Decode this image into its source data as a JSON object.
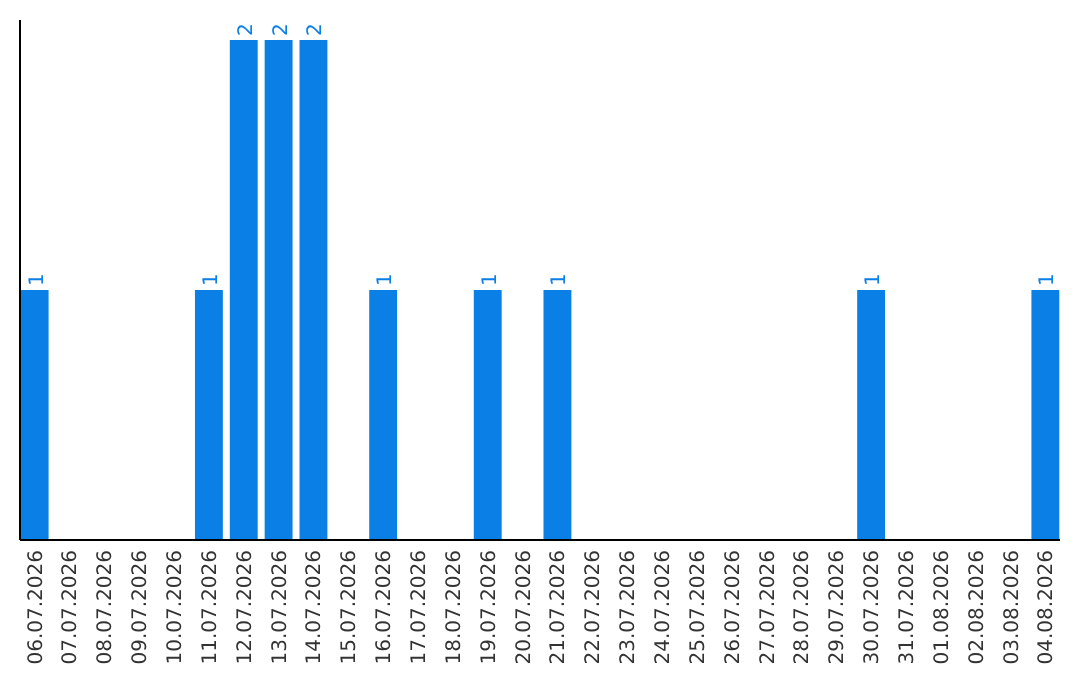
{
  "chart_data": {
    "type": "bar",
    "categories": [
      "06.07.2026",
      "07.07.2026",
      "08.07.2026",
      "09.07.2026",
      "10.07.2026",
      "11.07.2026",
      "12.07.2026",
      "13.07.2026",
      "14.07.2026",
      "15.07.2026",
      "16.07.2026",
      "17.07.2026",
      "18.07.2026",
      "19.07.2026",
      "20.07.2026",
      "21.07.2026",
      "22.07.2026",
      "23.07.2026",
      "24.07.2026",
      "25.07.2026",
      "26.07.2026",
      "27.07.2026",
      "28.07.2026",
      "29.07.2026",
      "30.07.2026",
      "31.07.2026",
      "01.08.2026",
      "02.08.2026",
      "03.08.2026",
      "04.08.2026"
    ],
    "values": [
      1,
      0,
      0,
      0,
      0,
      1,
      2,
      2,
      2,
      0,
      1,
      0,
      0,
      1,
      0,
      1,
      0,
      0,
      0,
      0,
      0,
      0,
      0,
      0,
      1,
      0,
      0,
      0,
      0,
      1
    ],
    "value_labels": [
      "1",
      null,
      null,
      null,
      null,
      "1",
      "2",
      "2",
      "2",
      null,
      "1",
      null,
      null,
      "1",
      null,
      "1",
      null,
      null,
      null,
      null,
      null,
      null,
      null,
      null,
      "1",
      null,
      null,
      null,
      null,
      "1"
    ],
    "color": "#0a7fe6",
    "ylim": [
      0,
      2.08
    ],
    "tick_labels": "x"
  }
}
